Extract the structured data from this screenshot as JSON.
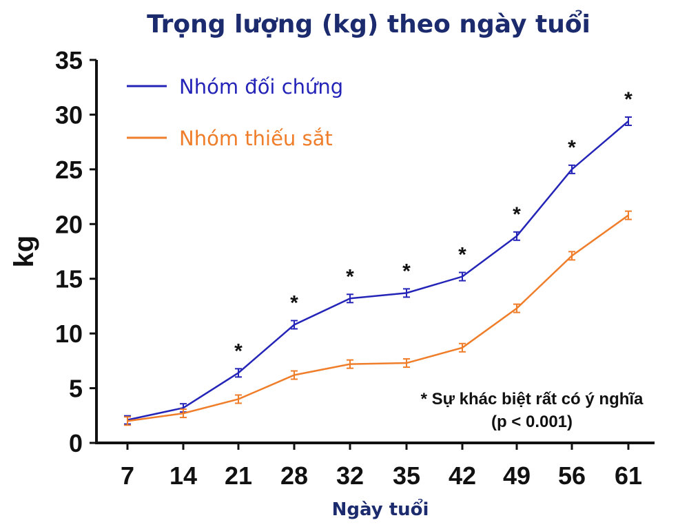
{
  "chart_data": {
    "type": "line",
    "title": "Trọng lượng (kg) theo ngày tuổi",
    "xlabel": "Ngày tuổi",
    "ylabel": "kg",
    "categories": [
      "7",
      "14",
      "21",
      "28",
      "32",
      "35",
      "42",
      "49",
      "56",
      "61"
    ],
    "yticks": [
      "0",
      "5",
      "10",
      "15",
      "20",
      "25",
      "30",
      "35"
    ],
    "ylim": [
      0,
      35
    ],
    "legend_position": "top-left",
    "series": [
      {
        "name": "Nhóm đối chứng",
        "color": "#2424b8",
        "values": [
          2.1,
          3.2,
          6.4,
          10.8,
          13.2,
          13.7,
          15.2,
          18.9,
          25.0,
          29.4
        ]
      },
      {
        "name": "Nhóm thiếu sắt",
        "color": "#ef7d2a",
        "values": [
          2.0,
          2.7,
          4.0,
          6.2,
          7.2,
          7.3,
          8.7,
          12.3,
          17.1,
          20.8
        ]
      }
    ],
    "significance_marker": "*",
    "significant_indices": [
      2,
      3,
      4,
      5,
      6,
      7,
      8,
      9
    ],
    "annotation": [
      "* Sự khác biệt rất có ý nghĩa",
      "(p < 0.001)"
    ]
  }
}
